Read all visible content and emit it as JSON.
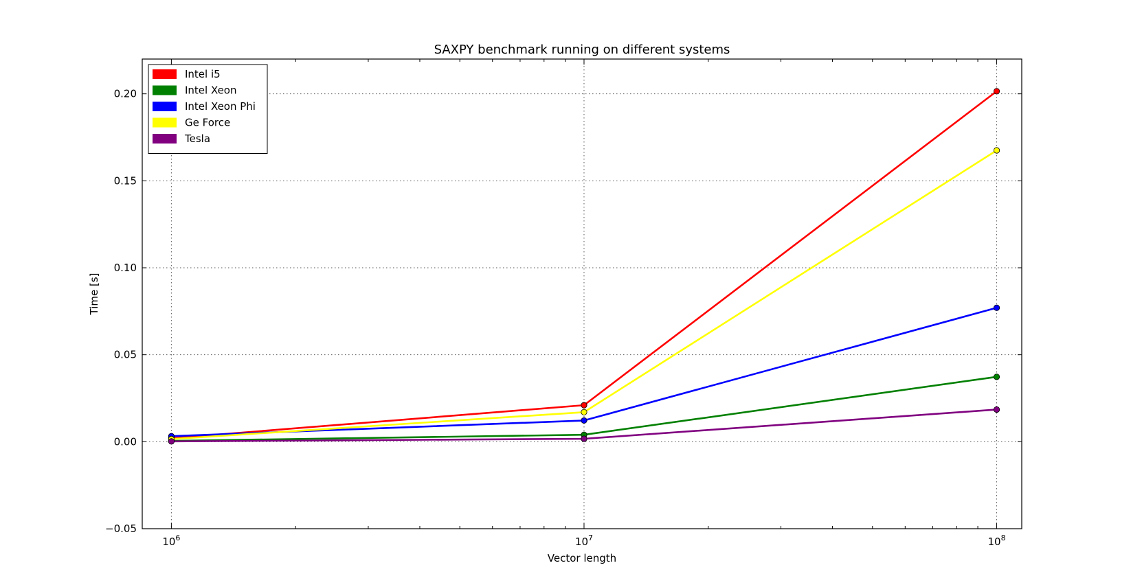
{
  "chart_data": {
    "type": "line",
    "title": "SAXPY benchmark running on different systems",
    "xlabel": "Vector length",
    "ylabel": "Time [s]",
    "x_scale": "log",
    "x": [
      1000000,
      10000000,
      100000000
    ],
    "xlim": [
      850000,
      115000000
    ],
    "ylim": [
      -0.05,
      0.22
    ],
    "x_ticks": [
      {
        "value": 1000000,
        "base": "10",
        "exp": "6"
      },
      {
        "value": 10000000,
        "base": "10",
        "exp": "7"
      },
      {
        "value": 100000000,
        "base": "10",
        "exp": "8"
      }
    ],
    "y_ticks": [
      {
        "value": -0.05,
        "label": "−0.05"
      },
      {
        "value": 0.0,
        "label": "0.00"
      },
      {
        "value": 0.05,
        "label": "0.05"
      },
      {
        "value": 0.1,
        "label": "0.10"
      },
      {
        "value": 0.15,
        "label": "0.15"
      },
      {
        "value": 0.2,
        "label": "0.20"
      }
    ],
    "grid": true,
    "legend_position": "top-left",
    "series": [
      {
        "name": "Intel i5",
        "color": "#ff0000",
        "values": [
          0.002,
          0.021,
          0.2015
        ]
      },
      {
        "name": "Intel Xeon",
        "color": "#008000",
        "values": [
          0.0005,
          0.004,
          0.0373
        ]
      },
      {
        "name": "Intel Xeon Phi",
        "color": "#0000ff",
        "values": [
          0.0032,
          0.0122,
          0.077
        ]
      },
      {
        "name": "Ge Force",
        "color": "#ffff00",
        "values": [
          0.0015,
          0.017,
          0.1675
        ]
      },
      {
        "name": "Tesla",
        "color": "#800080",
        "values": [
          0.0002,
          0.0017,
          0.0185
        ]
      }
    ]
  }
}
